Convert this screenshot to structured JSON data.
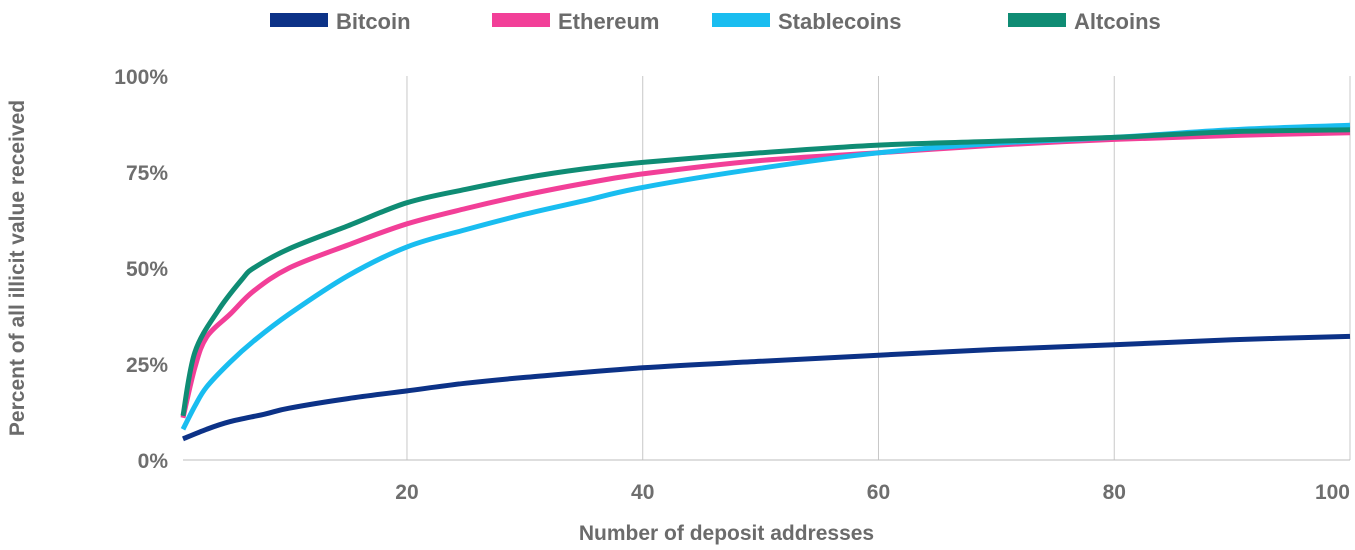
{
  "chart_data": {
    "type": "line",
    "xlabel": "Number of deposit addresses",
    "ylabel": "Percent of all illicit value received",
    "xlim": [
      1,
      100
    ],
    "ylim": [
      0,
      100
    ],
    "x_ticks": [
      {
        "value": 20,
        "label": "20"
      },
      {
        "value": 40,
        "label": "40"
      },
      {
        "value": 60,
        "label": "60"
      },
      {
        "value": 80,
        "label": "80"
      },
      {
        "value": 100,
        "label": "100"
      }
    ],
    "y_ticks": [
      {
        "value": 0,
        "label": "0%"
      },
      {
        "value": 25,
        "label": "25%"
      },
      {
        "value": 50,
        "label": "50%"
      },
      {
        "value": 75,
        "label": "75%"
      },
      {
        "value": 100,
        "label": "100%"
      }
    ],
    "grid": {
      "vertical": true,
      "horizontal": false
    },
    "legend_position": "top-center",
    "series": [
      {
        "name": "Bitcoin",
        "color": "#0c3287",
        "points": [
          [
            1,
            5.5
          ],
          [
            3,
            8
          ],
          [
            5,
            10
          ],
          [
            8,
            12
          ],
          [
            10,
            13.5
          ],
          [
            15,
            16
          ],
          [
            20,
            18
          ],
          [
            25,
            20
          ],
          [
            30,
            21.5
          ],
          [
            40,
            24
          ],
          [
            50,
            25.7
          ],
          [
            60,
            27.3
          ],
          [
            70,
            28.8
          ],
          [
            80,
            30
          ],
          [
            90,
            31.3
          ],
          [
            100,
            32.2
          ]
        ]
      },
      {
        "name": "Ethereum",
        "color": "#f23f98",
        "points": [
          [
            1,
            11
          ],
          [
            2,
            24
          ],
          [
            3,
            32
          ],
          [
            5,
            38
          ],
          [
            7,
            44
          ],
          [
            10,
            50
          ],
          [
            15,
            56
          ],
          [
            20,
            61.5
          ],
          [
            25,
            65.5
          ],
          [
            30,
            69
          ],
          [
            35,
            72
          ],
          [
            40,
            74.5
          ],
          [
            50,
            78
          ],
          [
            60,
            80
          ],
          [
            70,
            82
          ],
          [
            80,
            83.5
          ],
          [
            90,
            84.5
          ],
          [
            100,
            85.2
          ]
        ]
      },
      {
        "name": "Stablecoins",
        "color": "#19bdf0",
        "points": [
          [
            1,
            8
          ],
          [
            2,
            14
          ],
          [
            3,
            19
          ],
          [
            5,
            25.5
          ],
          [
            7,
            31
          ],
          [
            10,
            38
          ],
          [
            15,
            48
          ],
          [
            20,
            55.5
          ],
          [
            25,
            60
          ],
          [
            30,
            64
          ],
          [
            35,
            67.5
          ],
          [
            40,
            71
          ],
          [
            50,
            76
          ],
          [
            60,
            80
          ],
          [
            70,
            82.5
          ],
          [
            80,
            84
          ],
          [
            90,
            86
          ],
          [
            100,
            87.2
          ]
        ]
      },
      {
        "name": "Altcoins",
        "color": "#0f8c74",
        "points": [
          [
            1,
            11.5
          ],
          [
            2,
            28
          ],
          [
            4,
            39
          ],
          [
            6,
            47
          ],
          [
            7,
            50
          ],
          [
            10,
            55
          ],
          [
            15,
            61
          ],
          [
            20,
            67
          ],
          [
            25,
            70.5
          ],
          [
            30,
            73.5
          ],
          [
            35,
            75.8
          ],
          [
            40,
            77.5
          ],
          [
            50,
            80
          ],
          [
            60,
            82
          ],
          [
            70,
            83
          ],
          [
            80,
            84
          ],
          [
            90,
            85.5
          ],
          [
            100,
            86
          ]
        ]
      }
    ]
  }
}
